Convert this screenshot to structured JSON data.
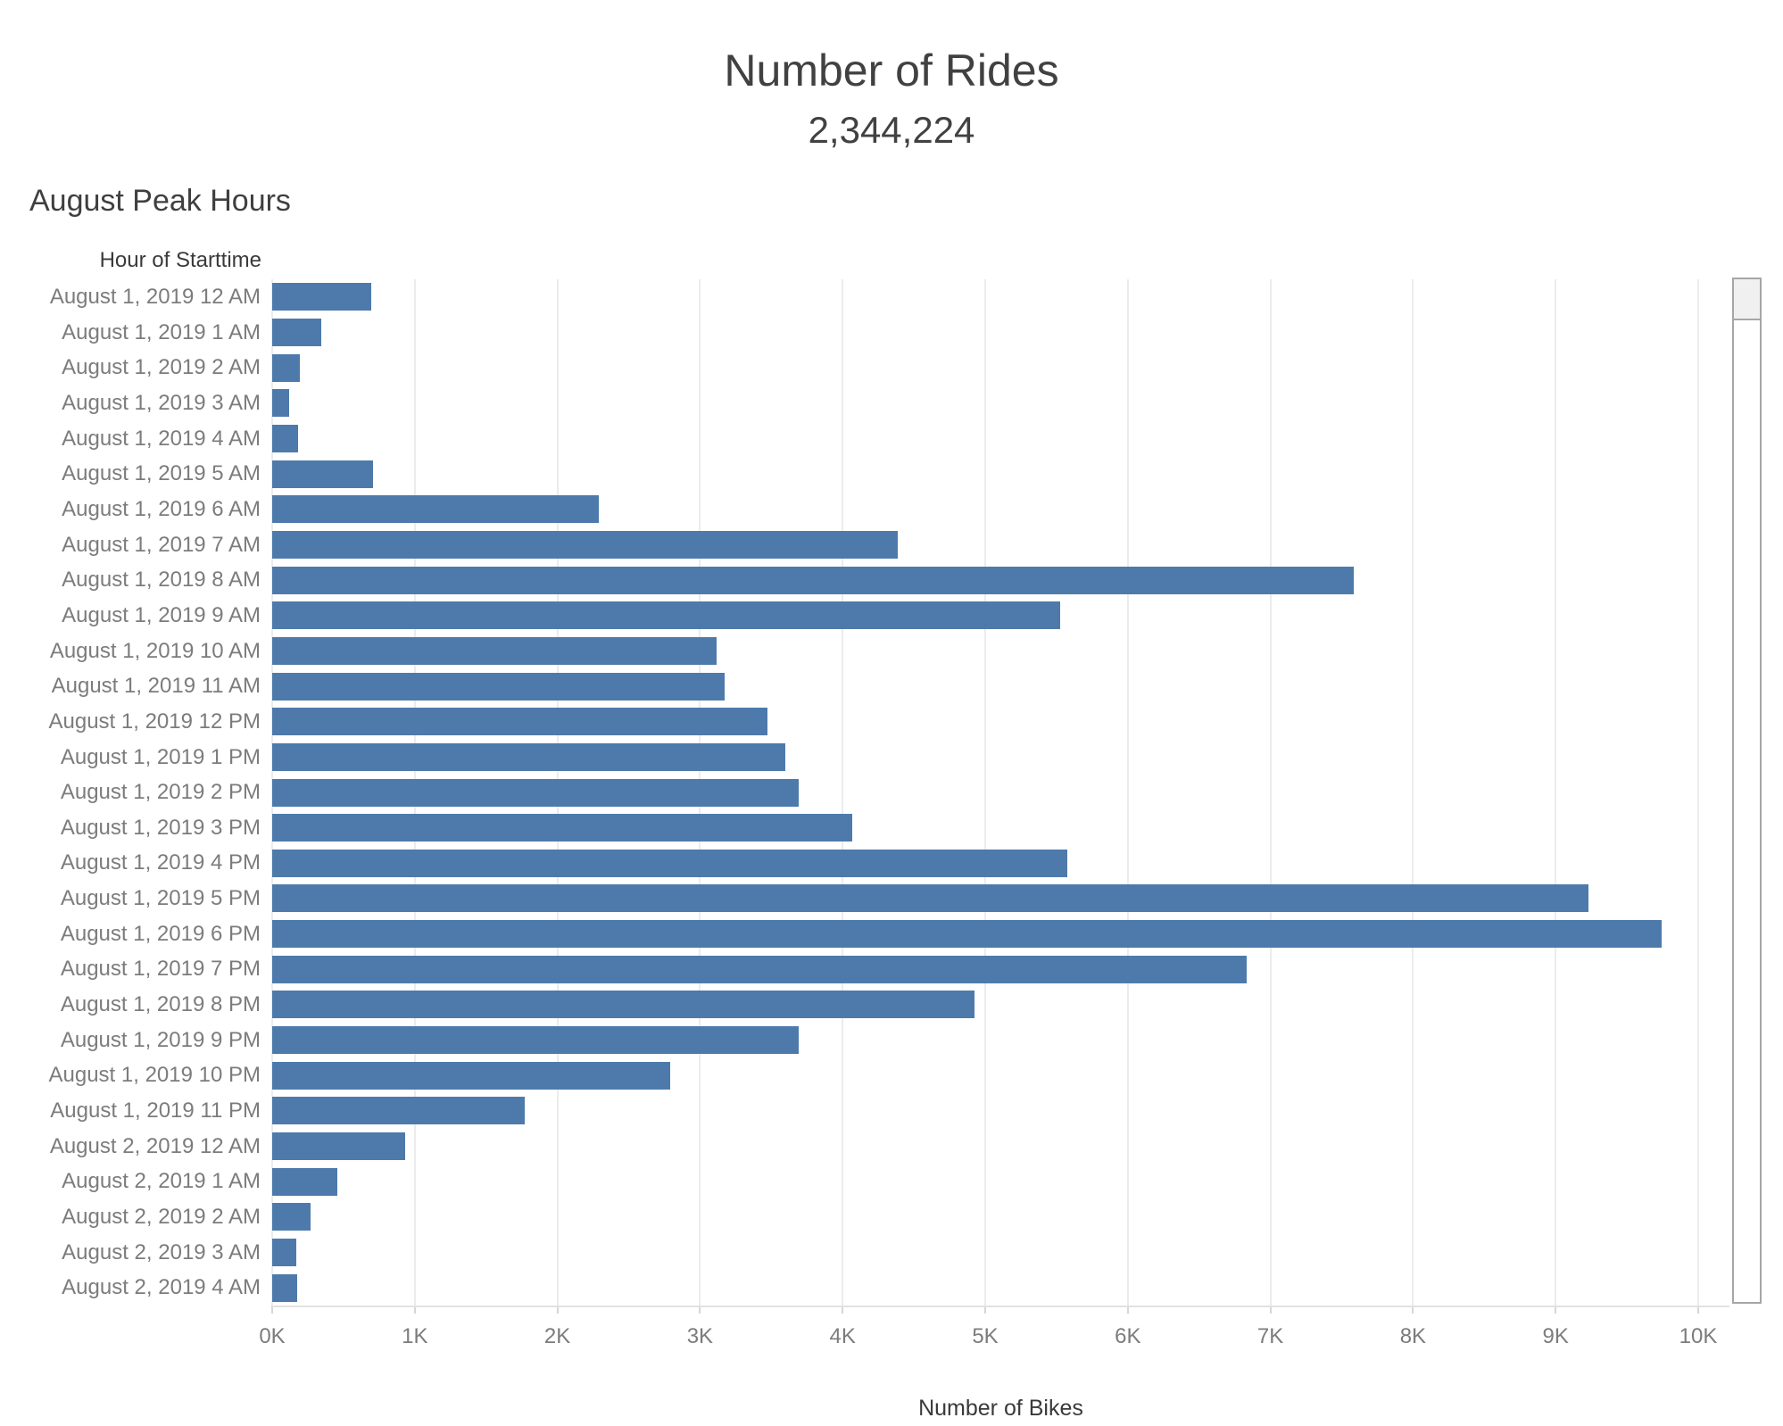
{
  "kpi": {
    "title": "Number of Rides",
    "value": "2,344,224"
  },
  "section": {
    "title": "August Peak Hours"
  },
  "colors": {
    "bar": "#4d7aab",
    "gridline": "#ececec",
    "row_label": "#7c7c7c",
    "header_text": "#3a3a3a"
  },
  "chart_data": {
    "type": "bar",
    "orientation": "horizontal",
    "title": "August Peak Hours",
    "categories_label": "Hour of Starttime",
    "xlabel": "Number of Bikes",
    "xlim": [
      0,
      10000
    ],
    "x_ticks": [
      "0K",
      "1K",
      "2K",
      "3K",
      "4K",
      "5K",
      "6K",
      "7K",
      "8K",
      "9K",
      "10K"
    ],
    "grid": true,
    "legend": false,
    "categories": [
      "August 1, 2019 12 AM",
      "August 1, 2019 1 AM",
      "August 1, 2019 2 AM",
      "August 1, 2019 3 AM",
      "August 1, 2019 4 AM",
      "August 1, 2019 5 AM",
      "August 1, 2019 6 AM",
      "August 1, 2019 7 AM",
      "August 1, 2019 8 AM",
      "August 1, 2019 9 AM",
      "August 1, 2019 10 AM",
      "August 1, 2019 11 AM",
      "August 1, 2019 12 PM",
      "August 1, 2019 1 PM",
      "August 1, 2019 2 PM",
      "August 1, 2019 3 PM",
      "August 1, 2019 4 PM",
      "August 1, 2019 5 PM",
      "August 1, 2019 6 PM",
      "August 1, 2019 7 PM",
      "August 1, 2019 8 PM",
      "August 1, 2019 9 PM",
      "August 1, 2019 10 PM",
      "August 1, 2019 11 PM",
      "August 2, 2019 12 AM",
      "August 2, 2019 1 AM",
      "August 2, 2019 2 AM",
      "August 2, 2019 3 AM",
      "August 2, 2019 4 AM"
    ],
    "values": [
      696,
      346,
      196,
      118,
      183,
      709,
      2289,
      4388,
      7585,
      5524,
      3119,
      3175,
      3472,
      3597,
      3690,
      4065,
      5578,
      9229,
      9744,
      6836,
      4922,
      3690,
      2790,
      1768,
      934,
      457,
      269,
      169,
      173
    ]
  },
  "scrollbar": {
    "present": true
  }
}
